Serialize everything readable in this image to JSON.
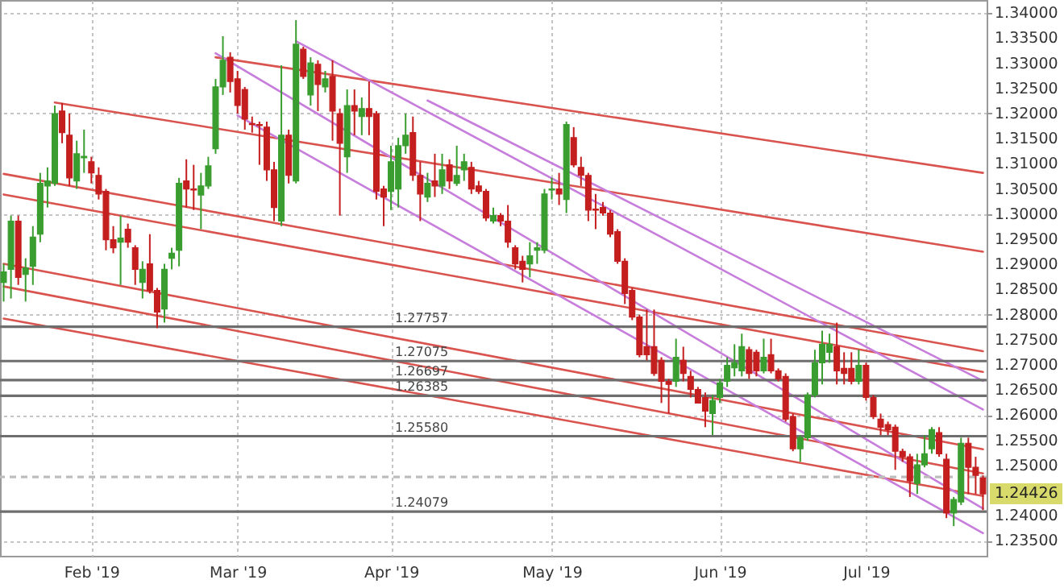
{
  "chart_data": {
    "type": "candlestick",
    "categories": [
      null,
      null,
      null,
      null,
      null,
      null,
      null,
      null,
      null,
      null,
      null,
      null,
      "Feb '19",
      null,
      null,
      null,
      null,
      null,
      null,
      null,
      null,
      null,
      null,
      null,
      null,
      null,
      null,
      null,
      null,
      null,
      null,
      null,
      "Mar '19",
      null,
      null,
      null,
      null,
      null,
      null,
      null,
      null,
      null,
      null,
      null,
      null,
      null,
      null,
      null,
      null,
      null,
      null,
      null,
      null,
      "Apr '19",
      null,
      null,
      null,
      null,
      null,
      null,
      null,
      null,
      null,
      null,
      null,
      null,
      null,
      null,
      null,
      null,
      null,
      null,
      null,
      null,
      null,
      "May '19",
      null,
      null,
      null,
      null,
      null,
      null,
      null,
      null,
      null,
      null,
      null,
      null,
      null,
      null,
      null,
      null,
      null,
      null,
      null,
      null,
      null,
      null,
      "Jun '19",
      null,
      null,
      null,
      null,
      null,
      null,
      null,
      null,
      null,
      null,
      null,
      null,
      null,
      null,
      null,
      null,
      null,
      null,
      null,
      "Jul '19",
      null,
      null,
      null,
      null,
      null,
      null,
      null,
      null,
      null,
      null,
      null,
      null,
      null,
      null,
      null,
      null
    ],
    "ohlc": [
      [
        1.2864,
        1.2901,
        1.2826,
        1.2885
      ],
      [
        1.289,
        1.2997,
        1.2832,
        1.2986
      ],
      [
        1.2986,
        1.2997,
        1.2859,
        1.2874
      ],
      [
        1.288,
        1.2912,
        1.2826,
        1.2893
      ],
      [
        1.2896,
        1.2976,
        1.2859,
        1.2954
      ],
      [
        1.296,
        1.3082,
        1.2944,
        1.3061
      ],
      [
        1.3056,
        1.3093,
        1.3013,
        1.3066
      ],
      [
        1.3061,
        1.3216,
        1.3056,
        1.32
      ],
      [
        1.3205,
        1.3221,
        1.3141,
        1.3162
      ],
      [
        1.3157,
        1.32,
        1.3056,
        1.3072
      ],
      [
        1.3066,
        1.3146,
        1.305,
        1.312
      ],
      [
        1.3112,
        1.3168,
        1.3082,
        1.3115
      ],
      [
        1.3104,
        1.3114,
        1.3061,
        1.3082
      ],
      [
        1.3077,
        1.3093,
        1.3029,
        1.304
      ],
      [
        1.3045,
        1.305,
        1.2928,
        1.2949
      ],
      [
        1.2949,
        1.2976,
        1.2922,
        1.2933
      ],
      [
        1.2944,
        1.2997,
        1.2859,
        1.2952
      ],
      [
        1.297,
        1.2981,
        1.2933,
        1.2944
      ],
      [
        1.2933,
        1.2938,
        1.2859,
        1.289
      ],
      [
        1.2864,
        1.2906,
        1.2832,
        1.289
      ],
      [
        1.2901,
        1.296,
        1.2842,
        1.2848
      ],
      [
        1.2848,
        1.2853,
        1.2773,
        1.2805
      ],
      [
        1.2811,
        1.2901,
        1.2784,
        1.289
      ],
      [
        1.2912,
        1.2933,
        1.289,
        1.2922
      ],
      [
        1.2928,
        1.3072,
        1.2896,
        1.3061
      ],
      [
        1.3066,
        1.3109,
        1.3013,
        1.305
      ],
      [
        1.305,
        1.3098,
        1.3008,
        1.3048
      ],
      [
        1.3038,
        1.3082,
        1.297,
        1.3056
      ],
      [
        1.3056,
        1.3114,
        1.305,
        1.3096
      ],
      [
        1.313,
        1.3269,
        1.312,
        1.3253
      ],
      [
        1.3253,
        1.3354,
        1.3237,
        1.3306
      ],
      [
        1.3312,
        1.3322,
        1.3242,
        1.3264
      ],
      [
        1.3269,
        1.3285,
        1.32,
        1.3216
      ],
      [
        1.3248,
        1.3253,
        1.3168,
        1.3189
      ],
      [
        1.318,
        1.3194,
        1.3162,
        1.3178
      ],
      [
        1.3178,
        1.3184,
        1.3098,
        1.3176
      ],
      [
        1.3173,
        1.3184,
        1.3066,
        1.3088
      ],
      [
        1.3088,
        1.3104,
        1.2986,
        1.3013
      ],
      [
        1.2986,
        1.3296,
        1.2976,
        1.3157
      ],
      [
        1.3157,
        1.3168,
        1.3061,
        1.3077
      ],
      [
        1.3066,
        1.3386,
        1.3061,
        1.3338
      ],
      [
        1.3328,
        1.3333,
        1.3269,
        1.3274
      ],
      [
        1.3237,
        1.3312,
        1.3216,
        1.3301
      ],
      [
        1.3298,
        1.3306,
        1.3205,
        1.3258
      ],
      [
        1.3253,
        1.3285,
        1.3242,
        1.3269
      ],
      [
        1.3274,
        1.3306,
        1.3146,
        1.3205
      ],
      [
        1.32,
        1.321,
        1.2997,
        1.3141
      ],
      [
        1.3114,
        1.3248,
        1.3082,
        1.3216
      ],
      [
        1.3216,
        1.3248,
        1.3157,
        1.3205
      ],
      [
        1.3194,
        1.3232,
        1.3157,
        1.321
      ],
      [
        1.321,
        1.3264,
        1.3157,
        1.3194
      ],
      [
        1.32,
        1.3205,
        1.3029,
        1.3045
      ],
      [
        1.305,
        1.3056,
        1.2976,
        1.3034
      ],
      [
        1.3045,
        1.3136,
        1.3008,
        1.3104
      ],
      [
        1.305,
        1.3152,
        1.3013,
        1.3136
      ],
      [
        1.3136,
        1.32,
        1.312,
        1.3157
      ],
      [
        1.3162,
        1.3194,
        1.3066,
        1.3077
      ],
      [
        1.3077,
        1.3104,
        1.2986,
        1.304
      ],
      [
        1.3034,
        1.3082,
        1.3024,
        1.3061
      ],
      [
        1.3066,
        1.312,
        1.3034,
        1.3056
      ],
      [
        1.3056,
        1.312,
        1.304,
        1.3088
      ],
      [
        1.3098,
        1.3109,
        1.305,
        1.3066
      ],
      [
        1.3061,
        1.3136,
        1.3056,
        1.3077
      ],
      [
        1.3088,
        1.312,
        1.3066,
        1.3104
      ],
      [
        1.3093,
        1.3104,
        1.304,
        1.305
      ],
      [
        1.3056,
        1.3066,
        1.304,
        1.3045
      ],
      [
        1.3045,
        1.305,
        1.2986,
        1.2992
      ],
      [
        1.2986,
        1.3013,
        1.2981,
        1.2997
      ],
      [
        1.2997,
        1.3002,
        1.2976,
        1.2986
      ],
      [
        1.2986,
        1.3018,
        1.2933,
        1.2944
      ],
      [
        1.2933,
        1.2938,
        1.289,
        1.2901
      ],
      [
        1.2906,
        1.2917,
        1.2864,
        1.289
      ],
      [
        1.2901,
        1.2944,
        1.2874,
        1.2917
      ],
      [
        1.2928,
        1.2944,
        1.2901,
        1.2933
      ],
      [
        1.2928,
        1.305,
        1.2922,
        1.304
      ],
      [
        1.3048,
        1.3072,
        1.3029,
        1.305
      ],
      [
        1.305,
        1.3082,
        1.3018,
        1.304
      ],
      [
        1.3029,
        1.3184,
        1.3002,
        1.3178
      ],
      [
        1.3152,
        1.3173,
        1.3093,
        1.3098
      ],
      [
        1.3093,
        1.3114,
        1.3056,
        1.3077
      ],
      [
        1.3077,
        1.3082,
        1.2986,
        1.3008
      ],
      [
        1.301,
        1.304,
        1.297,
        1.3008
      ],
      [
        1.3013,
        1.3024,
        1.2997,
        1.3002
      ],
      [
        1.3002,
        1.3008,
        1.2954,
        1.296
      ],
      [
        1.2965,
        1.297,
        1.2901,
        1.2906
      ],
      [
        1.2906,
        1.2912,
        1.2821,
        1.2842
      ],
      [
        1.2848,
        1.2853,
        1.2789,
        1.2795
      ],
      [
        1.2795,
        1.28,
        1.2715,
        1.272
      ],
      [
        1.2736,
        1.281,
        1.2709,
        1.272
      ],
      [
        1.2736,
        1.281,
        1.2678,
        1.2683
      ],
      [
        1.2709,
        1.2715,
        1.2624,
        1.2667
      ],
      [
        1.2667,
        1.2672,
        1.2603,
        1.2661
      ],
      [
        1.2667,
        1.2752,
        1.2656,
        1.2715
      ],
      [
        1.2709,
        1.2736,
        1.2667,
        1.2683
      ],
      [
        1.2677,
        1.2688,
        1.2635,
        1.2651
      ],
      [
        1.2651,
        1.2656,
        1.2624,
        1.2624
      ],
      [
        1.2635,
        1.2645,
        1.2576,
        1.2608
      ],
      [
        1.2603,
        1.264,
        1.256,
        1.2629
      ],
      [
        1.2635,
        1.2672,
        1.2624,
        1.2664
      ],
      [
        1.2667,
        1.2715,
        1.2656,
        1.2699
      ],
      [
        1.2694,
        1.2741,
        1.2677,
        1.2704
      ],
      [
        1.2688,
        1.2762,
        1.2677,
        1.2736
      ],
      [
        1.273,
        1.2736,
        1.2672,
        1.2683
      ],
      [
        1.2725,
        1.273,
        1.2677,
        1.2688
      ],
      [
        1.2688,
        1.2752,
        1.2683,
        1.2715
      ],
      [
        1.272,
        1.2752,
        1.2683,
        1.2688
      ],
      [
        1.2688,
        1.2693,
        1.2667,
        1.2672
      ],
      [
        1.2677,
        1.2683,
        1.2587,
        1.2592
      ],
      [
        1.2597,
        1.2603,
        1.2528,
        1.2533
      ],
      [
        1.2533,
        1.256,
        1.2507,
        1.2555
      ],
      [
        1.2555,
        1.2645,
        1.2549,
        1.264
      ],
      [
        1.264,
        1.273,
        1.2635,
        1.2704
      ],
      [
        1.2704,
        1.2768,
        1.2661,
        1.2741
      ],
      [
        1.2725,
        1.2762,
        1.2704,
        1.2741
      ],
      [
        1.2736,
        1.2784,
        1.2661,
        1.2688
      ],
      [
        1.2693,
        1.2725,
        1.2661,
        1.2683
      ],
      [
        1.2693,
        1.2725,
        1.2661,
        1.2667
      ],
      [
        1.2667,
        1.273,
        1.2661,
        1.2699
      ],
      [
        1.2699,
        1.2704,
        1.2629,
        1.2635
      ],
      [
        1.2635,
        1.264,
        1.2592,
        1.2597
      ],
      [
        1.2592,
        1.2603,
        1.256,
        1.2576
      ],
      [
        1.2581,
        1.2587,
        1.256,
        1.2571
      ],
      [
        1.2576,
        1.2581,
        1.2491,
        1.2528
      ],
      [
        1.2528,
        1.2533,
        1.2507,
        1.2517
      ],
      [
        1.2517,
        1.2523,
        1.2437,
        1.2469
      ],
      [
        1.2464,
        1.2523,
        1.2443,
        1.2501
      ],
      [
        1.2501,
        1.256,
        1.2496,
        1.2523
      ],
      [
        1.2533,
        1.2576,
        1.2523,
        1.2571
      ],
      [
        1.2565,
        1.2576,
        1.2517,
        1.2523
      ],
      [
        1.2512,
        1.2523,
        1.2395,
        1.2405
      ],
      [
        1.2405,
        1.2437,
        1.2379,
        1.2432
      ],
      [
        1.2427,
        1.2555,
        1.2421,
        1.2544
      ],
      [
        1.2544,
        1.2555,
        1.2443,
        1.2496
      ],
      [
        1.2496,
        1.2517,
        1.2443,
        1.248
      ],
      [
        1.2475,
        1.248,
        1.2411,
        1.2443
      ]
    ],
    "series": [
      {
        "type": "line",
        "color": "#d9534f",
        "values": [
          null,
          null,
          null,
          null,
          null,
          null,
          null,
          null,
          null,
          null,
          null,
          null,
          null,
          null,
          null,
          null,
          null,
          null,
          null,
          null,
          null,
          null,
          null,
          null,
          null,
          null,
          null,
          null,
          null,
          1.3312,
          null,
          null,
          null,
          null,
          null,
          null,
          null,
          null,
          null,
          null,
          null,
          null,
          null,
          null,
          null,
          null,
          null,
          null,
          null,
          null,
          null,
          null,
          null,
          null,
          null,
          null,
          null,
          null,
          null,
          null,
          null,
          null,
          null,
          null,
          null,
          null,
          null,
          null,
          null,
          null,
          null,
          null,
          null,
          null,
          null,
          null,
          null,
          null,
          null,
          null,
          null,
          null,
          null,
          null,
          null,
          null,
          null,
          null,
          null,
          null,
          null,
          null,
          null,
          null,
          null,
          null,
          null,
          null,
          null,
          null,
          null,
          null,
          null,
          null,
          null,
          null,
          null,
          null,
          null,
          null,
          null,
          null,
          null,
          null,
          null,
          null,
          null,
          null,
          null,
          null,
          null,
          null,
          null,
          null,
          null,
          null,
          null,
          null,
          null,
          null,
          null,
          null,
          null,
          null,
          1.3082
        ]
      },
      {
        "type": "line",
        "color": "#d9534f",
        "values": [
          null,
          null,
          null,
          null,
          null,
          null,
          null,
          1.3222,
          null,
          null,
          null,
          null,
          null,
          null,
          null,
          null,
          null,
          null,
          null,
          null,
          null,
          null,
          null,
          null,
          null,
          null,
          null,
          null,
          null,
          null,
          null,
          null,
          null,
          null,
          null,
          null,
          null,
          null,
          null,
          null,
          null,
          null,
          null,
          null,
          null,
          null,
          null,
          null,
          null,
          null,
          null,
          null,
          null,
          null,
          null,
          null,
          null,
          null,
          null,
          null,
          null,
          null,
          null,
          null,
          null,
          null,
          null,
          null,
          null,
          null,
          null,
          null,
          null,
          null,
          null,
          null,
          null,
          null,
          null,
          null,
          null,
          null,
          null,
          null,
          null,
          null,
          null,
          null,
          null,
          null,
          null,
          null,
          null,
          null,
          null,
          null,
          null,
          null,
          null,
          null,
          null,
          null,
          null,
          null,
          null,
          null,
          null,
          null,
          null,
          null,
          null,
          null,
          null,
          null,
          null,
          null,
          null,
          null,
          null,
          null,
          null,
          null,
          null,
          null,
          null,
          null,
          null,
          null,
          null,
          null,
          null,
          null,
          null,
          null,
          1.2925
        ]
      },
      {
        "type": "line",
        "color": "#d9534f",
        "values": [
          1.308,
          null,
          null,
          null,
          null,
          null,
          null,
          null,
          null,
          null,
          null,
          null,
          null,
          null,
          null,
          null,
          null,
          null,
          null,
          null,
          null,
          null,
          null,
          null,
          null,
          null,
          null,
          null,
          null,
          null,
          null,
          null,
          null,
          null,
          null,
          null,
          null,
          null,
          null,
          null,
          null,
          null,
          null,
          null,
          null,
          null,
          null,
          null,
          null,
          null,
          null,
          null,
          null,
          null,
          null,
          null,
          null,
          null,
          null,
          null,
          null,
          null,
          null,
          null,
          null,
          null,
          null,
          null,
          null,
          null,
          null,
          null,
          null,
          null,
          null,
          null,
          null,
          null,
          null,
          null,
          null,
          null,
          null,
          null,
          null,
          null,
          null,
          null,
          null,
          null,
          null,
          null,
          null,
          null,
          null,
          null,
          null,
          null,
          null,
          null,
          null,
          null,
          null,
          null,
          null,
          null,
          null,
          null,
          null,
          null,
          null,
          null,
          null,
          null,
          null,
          null,
          null,
          null,
          null,
          null,
          null,
          null,
          null,
          null,
          null,
          null,
          null,
          null,
          null,
          null,
          null,
          null,
          null,
          null,
          1.2727
        ]
      },
      {
        "type": "line",
        "color": "#d9534f",
        "values": [
          1.3039,
          null,
          null,
          null,
          null,
          null,
          null,
          null,
          null,
          null,
          null,
          null,
          null,
          null,
          null,
          null,
          null,
          null,
          null,
          null,
          null,
          null,
          null,
          null,
          null,
          null,
          null,
          null,
          null,
          null,
          null,
          null,
          null,
          null,
          null,
          null,
          null,
          null,
          null,
          null,
          null,
          null,
          null,
          null,
          null,
          null,
          null,
          null,
          null,
          null,
          null,
          null,
          null,
          null,
          null,
          null,
          null,
          null,
          null,
          null,
          null,
          null,
          null,
          null,
          null,
          null,
          null,
          null,
          null,
          null,
          null,
          null,
          null,
          null,
          null,
          null,
          null,
          null,
          null,
          null,
          null,
          null,
          null,
          null,
          null,
          null,
          null,
          null,
          null,
          null,
          null,
          null,
          null,
          null,
          null,
          null,
          null,
          null,
          null,
          null,
          null,
          null,
          null,
          null,
          null,
          null,
          null,
          null,
          null,
          null,
          null,
          null,
          null,
          null,
          null,
          null,
          null,
          null,
          null,
          null,
          null,
          null,
          null,
          null,
          null,
          null,
          null,
          null,
          null,
          null,
          null,
          null,
          null,
          null,
          1.2686
        ]
      },
      {
        "type": "line",
        "color": "#d9534f",
        "values": [
          1.2901,
          null,
          null,
          null,
          null,
          null,
          null,
          null,
          null,
          null,
          null,
          null,
          null,
          null,
          null,
          null,
          null,
          null,
          null,
          null,
          null,
          null,
          null,
          null,
          null,
          null,
          null,
          null,
          null,
          null,
          null,
          null,
          null,
          null,
          null,
          null,
          null,
          null,
          null,
          null,
          null,
          null,
          null,
          null,
          null,
          null,
          null,
          null,
          null,
          null,
          null,
          null,
          null,
          null,
          null,
          null,
          null,
          null,
          null,
          null,
          null,
          null,
          null,
          null,
          null,
          null,
          null,
          null,
          null,
          null,
          null,
          null,
          null,
          null,
          null,
          null,
          null,
          null,
          null,
          null,
          null,
          null,
          null,
          null,
          null,
          null,
          null,
          null,
          null,
          null,
          null,
          null,
          null,
          null,
          null,
          null,
          null,
          null,
          null,
          null,
          null,
          null,
          null,
          null,
          null,
          null,
          null,
          null,
          null,
          null,
          null,
          null,
          null,
          null,
          null,
          null,
          null,
          null,
          null,
          null,
          null,
          null,
          null,
          null,
          null,
          null,
          null,
          null,
          null,
          null,
          null,
          null,
          null,
          null,
          1.2532
        ]
      },
      {
        "type": "line",
        "color": "#d9534f",
        "values": [
          1.2856,
          null,
          null,
          null,
          null,
          null,
          null,
          null,
          null,
          null,
          null,
          null,
          null,
          null,
          null,
          null,
          null,
          null,
          null,
          null,
          null,
          null,
          null,
          null,
          null,
          null,
          null,
          null,
          null,
          null,
          null,
          null,
          null,
          null,
          null,
          null,
          null,
          null,
          null,
          null,
          null,
          null,
          null,
          null,
          null,
          null,
          null,
          null,
          null,
          null,
          null,
          null,
          null,
          null,
          null,
          null,
          null,
          null,
          null,
          null,
          null,
          null,
          null,
          null,
          null,
          null,
          null,
          null,
          null,
          null,
          null,
          null,
          null,
          null,
          null,
          null,
          null,
          null,
          null,
          null,
          null,
          null,
          null,
          null,
          null,
          null,
          null,
          null,
          null,
          null,
          null,
          null,
          null,
          null,
          null,
          null,
          null,
          null,
          null,
          null,
          null,
          null,
          null,
          null,
          null,
          null,
          null,
          null,
          null,
          null,
          null,
          null,
          null,
          null,
          null,
          null,
          null,
          null,
          null,
          null,
          null,
          null,
          null,
          null,
          null,
          null,
          null,
          null,
          null,
          null,
          null,
          null,
          null,
          null,
          1.2484
        ]
      },
      {
        "type": "line",
        "color": "#d9534f",
        "values": [
          1.2792,
          null,
          null,
          null,
          null,
          null,
          null,
          null,
          null,
          null,
          null,
          null,
          null,
          null,
          null,
          null,
          null,
          null,
          null,
          null,
          null,
          null,
          null,
          null,
          null,
          null,
          null,
          null,
          null,
          null,
          null,
          null,
          null,
          null,
          null,
          null,
          null,
          null,
          null,
          null,
          null,
          null,
          null,
          null,
          null,
          null,
          null,
          null,
          null,
          null,
          null,
          null,
          null,
          null,
          null,
          null,
          null,
          null,
          null,
          null,
          null,
          null,
          null,
          null,
          null,
          null,
          null,
          null,
          null,
          null,
          null,
          null,
          null,
          null,
          null,
          null,
          null,
          null,
          null,
          null,
          null,
          null,
          null,
          null,
          null,
          null,
          null,
          null,
          null,
          null,
          null,
          null,
          null,
          null,
          null,
          null,
          null,
          null,
          null,
          null,
          null,
          null,
          null,
          null,
          null,
          null,
          null,
          null,
          null,
          null,
          null,
          null,
          null,
          null,
          null,
          null,
          null,
          null,
          null,
          null,
          null,
          null,
          null,
          null,
          null,
          null,
          null,
          null,
          null,
          null,
          null,
          null,
          null,
          null,
          1.2439
        ]
      },
      {
        "type": "line",
        "color": "#c77ddb",
        "values": [
          null,
          null,
          null,
          null,
          null,
          null,
          null,
          null,
          null,
          null,
          null,
          null,
          null,
          null,
          null,
          null,
          null,
          null,
          null,
          null,
          null,
          null,
          null,
          null,
          null,
          null,
          null,
          null,
          null,
          null,
          null,
          null,
          null,
          null,
          null,
          null,
          null,
          null,
          null,
          null,
          1.3344,
          null,
          null,
          null,
          null,
          null,
          null,
          null,
          null,
          null,
          null,
          null,
          null,
          null,
          null,
          null,
          null,
          null,
          null,
          null,
          null,
          null,
          null,
          null,
          null,
          null,
          null,
          null,
          null,
          null,
          null,
          null,
          null,
          null,
          null,
          null,
          null,
          null,
          null,
          null,
          null,
          null,
          null,
          null,
          null,
          null,
          null,
          null,
          null,
          null,
          null,
          null,
          null,
          null,
          null,
          null,
          null,
          null,
          null,
          null,
          null,
          null,
          null,
          null,
          null,
          null,
          null,
          null,
          null,
          null,
          null,
          null,
          null,
          null,
          null,
          null,
          null,
          null,
          null,
          null,
          null,
          null,
          null,
          null,
          null,
          null,
          null,
          null,
          null,
          null,
          null,
          null,
          null,
          null,
          1.2611
        ]
      },
      {
        "type": "line",
        "color": "#c77ddb",
        "values": [
          null,
          null,
          null,
          null,
          null,
          null,
          null,
          null,
          null,
          null,
          null,
          null,
          null,
          null,
          null,
          null,
          null,
          null,
          null,
          null,
          null,
          null,
          null,
          null,
          null,
          null,
          null,
          null,
          null,
          1.332,
          null,
          null,
          null,
          null,
          null,
          null,
          null,
          null,
          null,
          null,
          null,
          null,
          null,
          null,
          null,
          null,
          null,
          null,
          null,
          null,
          null,
          null,
          null,
          null,
          null,
          null,
          null,
          null,
          null,
          null,
          null,
          null,
          null,
          null,
          null,
          null,
          null,
          null,
          null,
          null,
          null,
          null,
          null,
          null,
          null,
          null,
          null,
          null,
          null,
          null,
          null,
          null,
          null,
          null,
          null,
          null,
          null,
          null,
          null,
          null,
          null,
          null,
          null,
          null,
          null,
          null,
          null,
          null,
          null,
          null,
          null,
          null,
          null,
          null,
          null,
          null,
          null,
          null,
          null,
          null,
          null,
          null,
          null,
          null,
          null,
          null,
          null,
          null,
          null,
          null,
          null,
          null,
          null,
          null,
          null,
          null,
          null,
          null,
          null,
          null,
          null,
          null,
          null,
          null,
          1.2414
        ]
      },
      {
        "type": "line",
        "color": "#c77ddb",
        "values": [
          null,
          null,
          null,
          null,
          null,
          null,
          null,
          null,
          null,
          null,
          null,
          null,
          null,
          null,
          null,
          null,
          null,
          null,
          null,
          null,
          null,
          null,
          null,
          null,
          null,
          null,
          null,
          null,
          null,
          null,
          null,
          null,
          1.3196,
          null,
          null,
          null,
          null,
          null,
          null,
          null,
          null,
          null,
          null,
          null,
          null,
          null,
          null,
          null,
          null,
          null,
          null,
          null,
          null,
          null,
          null,
          null,
          null,
          null,
          null,
          null,
          null,
          null,
          null,
          null,
          null,
          null,
          null,
          null,
          null,
          null,
          null,
          null,
          null,
          null,
          null,
          null,
          null,
          null,
          null,
          null,
          null,
          null,
          null,
          null,
          null,
          null,
          null,
          null,
          null,
          null,
          null,
          null,
          null,
          null,
          null,
          null,
          null,
          null,
          null,
          null,
          null,
          null,
          null,
          null,
          null,
          null,
          null,
          null,
          null,
          null,
          null,
          null,
          null,
          null,
          null,
          null,
          null,
          null,
          null,
          null,
          null,
          null,
          null,
          null,
          null,
          null,
          null,
          null,
          null,
          null,
          null,
          null,
          null,
          null,
          1.2365
        ]
      },
      {
        "type": "line",
        "color": "#c77ddb",
        "values": [
          null,
          null,
          null,
          null,
          null,
          null,
          null,
          null,
          null,
          null,
          null,
          null,
          null,
          null,
          null,
          null,
          null,
          null,
          null,
          null,
          null,
          null,
          null,
          null,
          null,
          null,
          null,
          null,
          null,
          null,
          null,
          null,
          null,
          null,
          null,
          null,
          null,
          null,
          null,
          null,
          null,
          null,
          null,
          null,
          null,
          null,
          null,
          null,
          null,
          null,
          null,
          null,
          null,
          null,
          null,
          null,
          null,
          null,
          1.3226,
          null,
          null,
          null,
          null,
          null,
          null,
          null,
          null,
          null,
          null,
          null,
          null,
          null,
          null,
          null,
          null,
          null,
          null,
          null,
          null,
          null,
          null,
          null,
          null,
          null,
          null,
          null,
          null,
          null,
          null,
          null,
          null,
          null,
          null,
          null,
          null,
          null,
          null,
          null,
          null,
          null,
          null,
          null,
          null,
          null,
          null,
          null,
          null,
          null,
          null,
          null,
          null,
          null,
          null,
          null,
          null,
          null,
          null,
          null,
          null,
          null,
          null,
          null,
          null,
          null,
          null,
          null,
          null,
          null,
          null,
          null,
          null,
          null,
          null,
          null,
          1.2668
        ]
      }
    ],
    "ref_lines": [
      {
        "axis": "y",
        "value": 1.27757,
        "label": "1.27757",
        "color": "#6e6e6e"
      },
      {
        "axis": "y",
        "value": 1.27075,
        "label": "1.27075",
        "color": "#6e6e6e"
      },
      {
        "axis": "y",
        "value": 1.26697,
        "label": "1.26697",
        "color": "#6e6e6e"
      },
      {
        "axis": "y",
        "value": 1.26385,
        "label": "1.26385",
        "color": "#6e6e6e"
      },
      {
        "axis": "y",
        "value": 1.2558,
        "label": "1.25580",
        "color": "#6e6e6e"
      },
      {
        "axis": "y",
        "value": 1.24079,
        "label": "1.24079",
        "color": "#6e6e6e"
      },
      {
        "axis": "y",
        "value": 1.2477,
        "color": "#bdbdbd",
        "line_style": "dashed"
      }
    ],
    "annotations": [
      "1.24426"
    ],
    "ylim": [
      1.232,
      1.3426
    ],
    "yticks": [
      {
        "value": 1.235,
        "label": "1.23500"
      },
      {
        "value": 1.24,
        "label": "1.24000"
      },
      {
        "value": 1.25,
        "label": "1.25000"
      },
      {
        "value": 1.255,
        "label": "1.25500"
      },
      {
        "value": 1.26,
        "label": "1.26000"
      },
      {
        "value": 1.265,
        "label": "1.26500"
      },
      {
        "value": 1.27,
        "label": "1.27000"
      },
      {
        "value": 1.275,
        "label": "1.27500"
      },
      {
        "value": 1.28,
        "label": "1.28000"
      },
      {
        "value": 1.285,
        "label": "1.28500"
      },
      {
        "value": 1.29,
        "label": "1.29000"
      },
      {
        "value": 1.295,
        "label": "1.29500"
      },
      {
        "value": 1.3,
        "label": "1.30000"
      },
      {
        "value": 1.305,
        "label": "1.30500"
      },
      {
        "value": 1.31,
        "label": "1.31000"
      },
      {
        "value": 1.315,
        "label": "1.31500"
      },
      {
        "value": 1.32,
        "label": "1.32000"
      },
      {
        "value": 1.325,
        "label": "1.32500"
      },
      {
        "value": 1.33,
        "label": "1.33000"
      },
      {
        "value": 1.335,
        "label": "1.33500"
      },
      {
        "value": 1.34,
        "label": "1.34000"
      }
    ],
    "grid": true
  }
}
